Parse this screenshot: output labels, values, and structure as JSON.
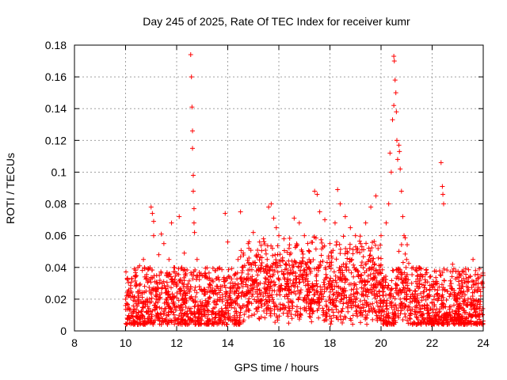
{
  "chart_data": {
    "type": "scatter",
    "title": "Day 245 of 2025, Rate Of TEC Index for receiver kumr",
    "xlabel": "GPS time / hours",
    "ylabel": "ROTI / TECUs",
    "xlim": [
      8,
      24
    ],
    "ylim": [
      0,
      0.18
    ],
    "x_ticks": [
      8,
      10,
      12,
      14,
      16,
      18,
      20,
      22,
      24
    ],
    "x_tick_labels": [
      "8",
      "10",
      "12",
      "14",
      "16",
      "18",
      "20",
      "22",
      "24"
    ],
    "y_ticks": [
      0,
      0.02,
      0.04,
      0.06,
      0.08,
      0.1,
      0.12,
      0.14,
      0.16,
      0.18
    ],
    "y_tick_labels": [
      "0",
      "0.02",
      "0.04",
      "0.06",
      "0.08",
      "0.1",
      "0.12",
      "0.14",
      "0.16",
      "0.18"
    ],
    "grid": true,
    "marker": "+",
    "color": "#ff0000",
    "series": [
      {
        "values": [
          [
            10.0,
            0.016
          ],
          [
            10.1,
            0.022
          ],
          [
            10.15,
            0.008
          ],
          [
            10.25,
            0.033
          ],
          [
            10.3,
            0.012
          ],
          [
            10.4,
            0.028
          ],
          [
            10.5,
            0.018
          ],
          [
            10.55,
            0.041
          ],
          [
            10.6,
            0.01
          ],
          [
            10.7,
            0.045
          ],
          [
            10.8,
            0.025
          ],
          [
            10.9,
            0.013
          ],
          [
            11.0,
            0.078
          ],
          [
            11.05,
            0.074
          ],
          [
            11.1,
            0.069
          ],
          [
            11.1,
            0.06
          ],
          [
            11.15,
            0.031
          ],
          [
            11.2,
            0.02
          ],
          [
            11.3,
            0.048
          ],
          [
            11.4,
            0.061
          ],
          [
            11.5,
            0.055
          ],
          [
            11.6,
            0.035
          ],
          [
            11.7,
            0.045
          ],
          [
            11.8,
            0.068
          ],
          [
            11.9,
            0.022
          ],
          [
            12.0,
            0.03
          ],
          [
            12.1,
            0.072
          ],
          [
            12.2,
            0.04
          ],
          [
            12.3,
            0.049
          ],
          [
            12.4,
            0.028
          ],
          [
            12.55,
            0.174
          ],
          [
            12.58,
            0.16
          ],
          [
            12.6,
            0.141
          ],
          [
            12.62,
            0.126
          ],
          [
            12.62,
            0.115
          ],
          [
            12.65,
            0.098
          ],
          [
            12.65,
            0.088
          ],
          [
            12.68,
            0.077
          ],
          [
            12.68,
            0.068
          ],
          [
            12.7,
            0.062
          ],
          [
            12.8,
            0.045
          ],
          [
            12.9,
            0.035
          ],
          [
            13.0,
            0.025
          ],
          [
            13.2,
            0.018
          ],
          [
            13.4,
            0.032
          ],
          [
            13.6,
            0.028
          ],
          [
            13.8,
            0.02
          ],
          [
            13.9,
            0.074
          ],
          [
            14.0,
            0.056
          ],
          [
            14.2,
            0.03
          ],
          [
            14.4,
            0.045
          ],
          [
            14.5,
            0.075
          ],
          [
            14.6,
            0.04
          ],
          [
            14.8,
            0.055
          ],
          [
            15.0,
            0.062
          ],
          [
            15.2,
            0.048
          ],
          [
            15.4,
            0.058
          ],
          [
            15.6,
            0.078
          ],
          [
            15.7,
            0.08
          ],
          [
            15.8,
            0.071
          ],
          [
            15.9,
            0.065
          ],
          [
            16.0,
            0.06
          ],
          [
            16.2,
            0.058
          ],
          [
            16.4,
            0.052
          ],
          [
            16.6,
            0.071
          ],
          [
            16.8,
            0.068
          ],
          [
            17.0,
            0.06
          ],
          [
            17.2,
            0.05
          ],
          [
            17.4,
            0.088
          ],
          [
            17.5,
            0.086
          ],
          [
            17.6,
            0.075
          ],
          [
            17.8,
            0.07
          ],
          [
            18.0,
            0.055
          ],
          [
            18.2,
            0.068
          ],
          [
            18.3,
            0.089
          ],
          [
            18.4,
            0.08
          ],
          [
            18.6,
            0.072
          ],
          [
            18.8,
            0.065
          ],
          [
            19.0,
            0.06
          ],
          [
            19.2,
            0.055
          ],
          [
            19.4,
            0.068
          ],
          [
            19.6,
            0.078
          ],
          [
            19.8,
            0.085
          ],
          [
            20.0,
            0.06
          ],
          [
            20.2,
            0.068
          ],
          [
            20.3,
            0.08
          ],
          [
            20.35,
            0.112
          ],
          [
            20.4,
            0.1
          ],
          [
            20.45,
            0.133
          ],
          [
            20.5,
            0.142
          ],
          [
            20.5,
            0.173
          ],
          [
            20.52,
            0.17
          ],
          [
            20.55,
            0.158
          ],
          [
            20.58,
            0.15
          ],
          [
            20.6,
            0.138
          ],
          [
            20.62,
            0.12
          ],
          [
            20.65,
            0.108
          ],
          [
            20.7,
            0.117
          ],
          [
            20.72,
            0.113
          ],
          [
            20.75,
            0.102
          ],
          [
            20.8,
            0.088
          ],
          [
            20.85,
            0.072
          ],
          [
            20.9,
            0.06
          ],
          [
            21.0,
            0.045
          ],
          [
            21.2,
            0.03
          ],
          [
            21.4,
            0.028
          ],
          [
            21.6,
            0.035
          ],
          [
            21.8,
            0.022
          ],
          [
            22.0,
            0.018
          ],
          [
            22.2,
            0.03
          ],
          [
            22.35,
            0.106
          ],
          [
            22.4,
            0.091
          ],
          [
            22.42,
            0.086
          ],
          [
            22.45,
            0.08
          ],
          [
            22.6,
            0.025
          ],
          [
            22.8,
            0.042
          ],
          [
            23.0,
            0.02
          ],
          [
            23.2,
            0.028
          ],
          [
            23.4,
            0.018
          ],
          [
            23.6,
            0.045
          ],
          [
            23.7,
            0.038
          ],
          [
            23.8,
            0.03
          ],
          [
            23.9,
            0.022
          ],
          [
            24.0,
            0.035
          ]
        ],
        "dense_band": {
          "x_range": [
            10.0,
            24.0
          ],
          "y_range": [
            0.004,
            0.04
          ]
        }
      }
    ]
  }
}
